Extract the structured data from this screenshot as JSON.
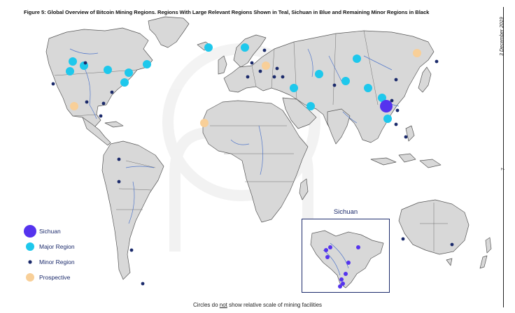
{
  "figure": {
    "title": "Figure 5: Global Overview of Bitcoin Mining Regions. Regions With Large Relevant Regions Shown in Teal, Sichuan in Blue and Remaining Minor Regions in Black",
    "side_date": "3 December 2019",
    "page_number": "7",
    "footnote_before": "Circles do ",
    "footnote_emphasis": "not",
    "footnote_after": " show relative scale of mining facilities",
    "inset_title": "Sichuan"
  },
  "colors": {
    "sichuan": "#5533ee",
    "major": "#1ec8ec",
    "minor": "#1b2a6b",
    "prospective": "#f8cf98",
    "land": "#d8d8d8",
    "land_stroke": "#555555",
    "river": "#3a66c8"
  },
  "legend": [
    {
      "key": "sichuan",
      "label": "Sichuan"
    },
    {
      "key": "major",
      "label": "Major Region"
    },
    {
      "key": "minor",
      "label": "Minor Region"
    },
    {
      "key": "prospective",
      "label": "Prospective"
    }
  ]
}
